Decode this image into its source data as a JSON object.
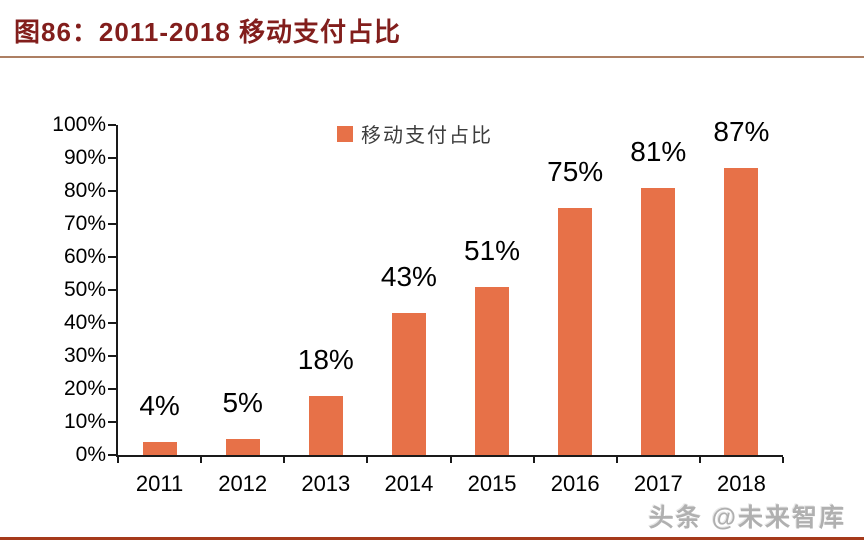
{
  "header": {
    "title": "图86：2011-2018 移动支付占比"
  },
  "watermark": {
    "text": "头条 @未来智库"
  },
  "colors": {
    "title": "#821E1C",
    "top_divider": "#AD7F63",
    "bottom_rule": "#A53A1B",
    "watermark": "#B0B0B0"
  },
  "chart_data": {
    "type": "bar",
    "title": "图86：2011-2018 移动支付占比",
    "categories": [
      "2011",
      "2012",
      "2013",
      "2014",
      "2015",
      "2016",
      "2017",
      "2018"
    ],
    "values": [
      4,
      5,
      18,
      43,
      51,
      75,
      81,
      87
    ],
    "data_labels": [
      "4%",
      "5%",
      "18%",
      "43%",
      "51%",
      "75%",
      "81%",
      "87%"
    ],
    "unit": "%",
    "xlabel": "",
    "ylabel": "",
    "ylim": [
      0,
      100
    ],
    "ytick_step": 10,
    "ytick_labels": [
      "0%",
      "10%",
      "20%",
      "30%",
      "40%",
      "50%",
      "60%",
      "70%",
      "80%",
      "90%",
      "100%"
    ],
    "grid": false,
    "legend": {
      "label": "移动支付占比",
      "position": "top-center"
    },
    "colors": {
      "bar": "#E77148",
      "axis": "#1A1A1A",
      "tick_label": "#000000",
      "data_label": "#000000"
    }
  }
}
